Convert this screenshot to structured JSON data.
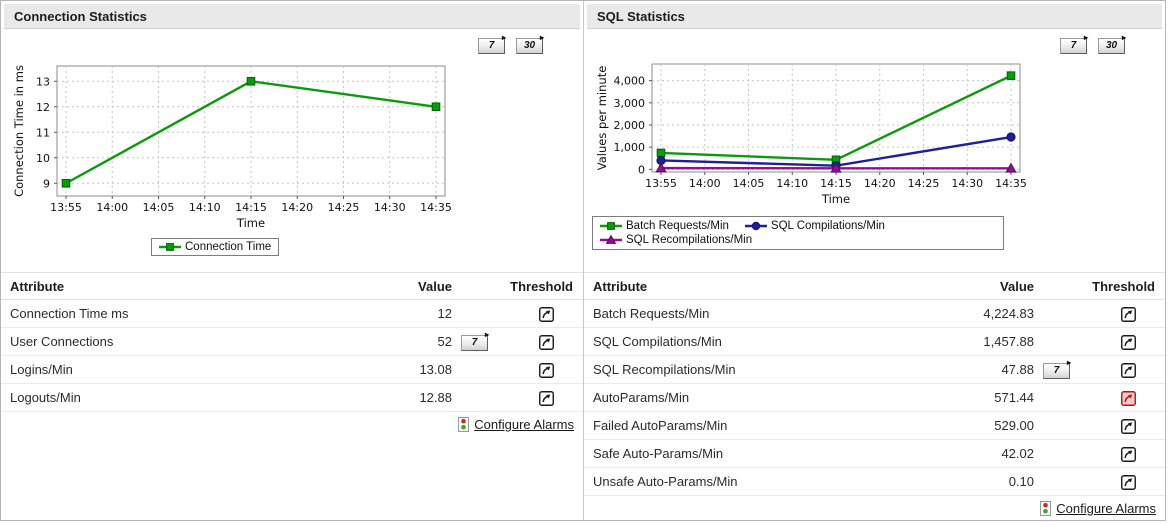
{
  "colors": {
    "alert_red": "#bb1111",
    "alert_bg": "#f6caca",
    "icon_black": "#1a1a1a",
    "traffic_red": "#cc2b16",
    "traffic_green": "#3fa32e",
    "header_bg": "#e9e9e9"
  },
  "left_panel": {
    "title": "Connection Statistics",
    "range_buttons": [
      "7",
      "30"
    ],
    "configure_alarms_label": "Configure Alarms",
    "table": {
      "columns": [
        "Attribute",
        "Value",
        "Threshold"
      ],
      "rows": [
        {
          "attribute": "Connection Time ms",
          "value": "12",
          "history_button": "",
          "threshold": "normal"
        },
        {
          "attribute": "User Connections",
          "value": "52",
          "history_button": "7",
          "threshold": "normal"
        },
        {
          "attribute": "Logins/Min",
          "value": "13.08",
          "history_button": "",
          "threshold": "normal"
        },
        {
          "attribute": "Logouts/Min",
          "value": "12.88",
          "history_button": "",
          "threshold": "normal"
        }
      ]
    }
  },
  "right_panel": {
    "title": "SQL Statistics",
    "range_buttons": [
      "7",
      "30"
    ],
    "configure_alarms_label": "Configure Alarms",
    "table": {
      "columns": [
        "Attribute",
        "Value",
        "Threshold"
      ],
      "rows": [
        {
          "attribute": "Batch Requests/Min",
          "value": "4,224.83",
          "history_button": "",
          "threshold": "normal"
        },
        {
          "attribute": "SQL Compilations/Min",
          "value": "1,457.88",
          "history_button": "",
          "threshold": "normal"
        },
        {
          "attribute": "SQL Recompilations/Min",
          "value": "47.88",
          "history_button": "7",
          "threshold": "normal"
        },
        {
          "attribute": "AutoParams/Min",
          "value": "571.44",
          "history_button": "",
          "threshold": "alert"
        },
        {
          "attribute": "Failed AutoParams/Min",
          "value": "529.00",
          "history_button": "",
          "threshold": "normal"
        },
        {
          "attribute": "Safe Auto-Params/Min",
          "value": "42.02",
          "history_button": "",
          "threshold": "normal"
        },
        {
          "attribute": "Unsafe Auto-Params/Min",
          "value": "0.10",
          "history_button": "",
          "threshold": "normal"
        }
      ]
    }
  },
  "chart_data": [
    {
      "type": "line",
      "title": "Connection Statistics",
      "xlabel": "Time",
      "ylabel": "Connection Time in ms",
      "x_ticks": [
        "13:55",
        "14:00",
        "14:05",
        "14:10",
        "14:15",
        "14:20",
        "14:25",
        "14:30",
        "14:35"
      ],
      "ylim": [
        8.5,
        13.6
      ],
      "y_ticks": [
        9,
        10,
        11,
        12,
        13
      ],
      "y_tick_labels": [
        "9",
        "10",
        "11",
        "12",
        "13"
      ],
      "grid": true,
      "legend_position": "bottom",
      "series": [
        {
          "name": "Connection Time",
          "color": "#0a9a0a",
          "marker": "square",
          "x": [
            "13:55",
            "14:15",
            "14:35"
          ],
          "values": [
            9,
            13,
            12
          ]
        }
      ]
    },
    {
      "type": "line",
      "title": "SQL Statistics",
      "xlabel": "Time",
      "ylabel": "Values per minute",
      "x_ticks": [
        "13:55",
        "14:00",
        "14:05",
        "14:10",
        "14:15",
        "14:20",
        "14:25",
        "14:30",
        "14:35"
      ],
      "ylim": [
        -120,
        4750
      ],
      "y_ticks": [
        0,
        1000,
        2000,
        3000,
        4000
      ],
      "y_tick_labels": [
        "0",
        "1,000",
        "2,000",
        "3,000",
        "4,000"
      ],
      "grid": true,
      "legend_position": "bottom",
      "series": [
        {
          "name": "Batch Requests/Min",
          "color": "#0a9a0a",
          "marker": "square",
          "x": [
            "13:55",
            "14:15",
            "14:35"
          ],
          "values": [
            740,
            430,
            4224.83
          ]
        },
        {
          "name": "SQL Compilations/Min",
          "color": "#1f1f99",
          "marker": "circle",
          "x": [
            "13:55",
            "14:15",
            "14:35"
          ],
          "values": [
            400,
            165,
            1457.88
          ]
        },
        {
          "name": "SQL Recompilations/Min",
          "color": "#911091",
          "marker": "triangle",
          "x": [
            "13:55",
            "14:15",
            "14:35"
          ],
          "values": [
            55,
            48,
            47.88
          ]
        }
      ]
    }
  ]
}
